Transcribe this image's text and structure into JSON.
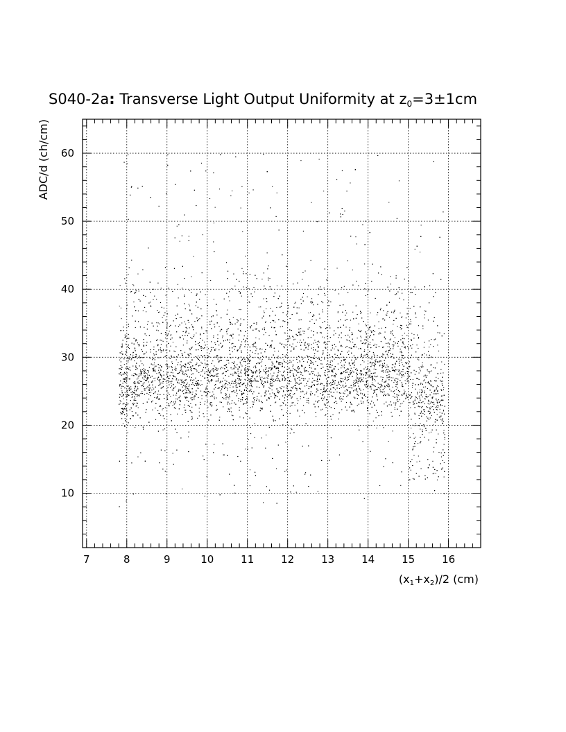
{
  "chart_data": {
    "type": "scatter",
    "title_main": "S040-2a",
    "title_colon": ":",
    "title_rest": " Transverse Light Output Uniformity at z",
    "title_sub": "0",
    "title_end": "=3±1cm",
    "xlabel_parts": [
      "(x",
      "1",
      "+x",
      "2",
      ")/2 (cm)"
    ],
    "ylabel": "ADC/d (ch/cm)",
    "xlim": [
      6.9,
      16.8
    ],
    "ylim": [
      2,
      65
    ],
    "x_ticks": [
      7,
      8,
      9,
      10,
      11,
      12,
      13,
      14,
      15,
      16
    ],
    "x_tick_labels": [
      "7",
      "8",
      "9",
      "10",
      "11",
      "12",
      "13",
      "14",
      "15",
      "16"
    ],
    "y_ticks": [
      10,
      20,
      30,
      40,
      50,
      60
    ],
    "y_tick_labels": [
      "10",
      "20",
      "30",
      "40",
      "50",
      "60"
    ],
    "grid": true,
    "distribution": {
      "x_range": [
        7.8,
        15.9
      ],
      "dense_band": [
        22,
        32
      ],
      "peak_y": 27,
      "sparse_range": [
        8,
        60
      ],
      "edge_droop_x": [
        15.0,
        15.8
      ],
      "edge_droop_y": [
        12,
        25
      ],
      "approx_points": 8000
    },
    "point_color": "#000000"
  }
}
